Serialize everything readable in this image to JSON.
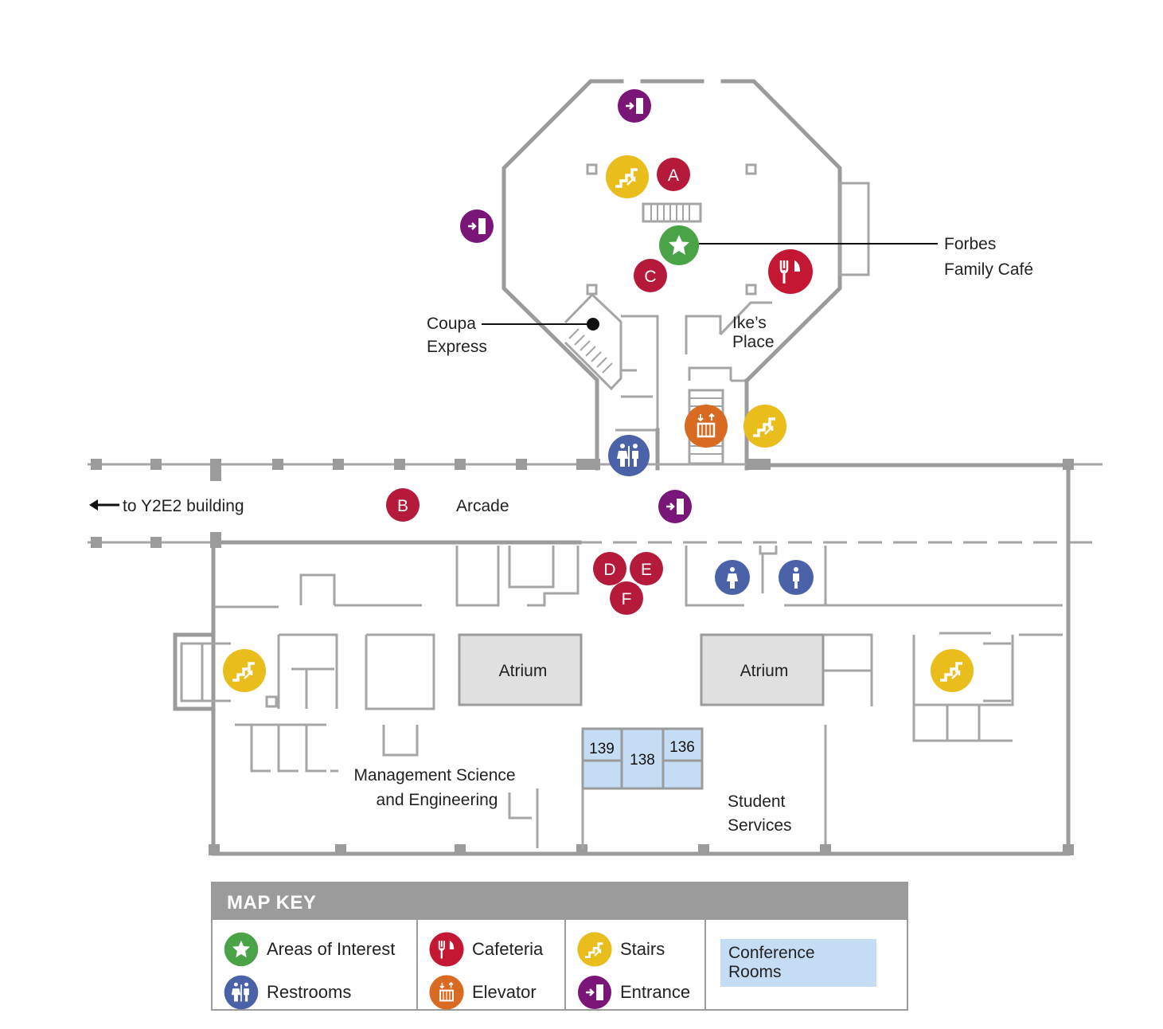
{
  "map": {
    "labels": {
      "to_y2e2": "to Y2E2 building",
      "arcade": "Arcade",
      "forbes_line1": "Forbes",
      "forbes_line2": "Family Café",
      "coupa_line1": "Coupa",
      "coupa_line2": "Express",
      "ikes_line1": "Ike’s",
      "ikes_line2": "Place",
      "atrium_left": "Atrium",
      "atrium_right": "Atrium",
      "mse_line1": "Management Science",
      "mse_line2": "and Engineering",
      "ss_line1": "Student",
      "ss_line2": "Services"
    },
    "rooms": [
      "139",
      "138",
      "136"
    ],
    "markers": [
      "A",
      "B",
      "C",
      "D",
      "E",
      "F"
    ],
    "colors": {
      "wall": "#9b9b9b",
      "atrium": "#e0e0e0",
      "conference": "#c4dcf4",
      "interest": "#4aa347",
      "cafeteria": "#c41733",
      "stairs": "#e8bd1c",
      "entrance": "#7a1678",
      "restrooms": "#4b62a8",
      "elevator": "#d96a22",
      "marker": "#b51a3b"
    }
  },
  "key": {
    "title": "MAP KEY",
    "items": {
      "areas_of_interest": "Areas of Interest",
      "restrooms": "Restrooms",
      "cafeteria": "Cafeteria",
      "elevator": "Elevator",
      "stairs": "Stairs",
      "entrance": "Entrance",
      "conference_rooms": "Conference Rooms"
    }
  }
}
